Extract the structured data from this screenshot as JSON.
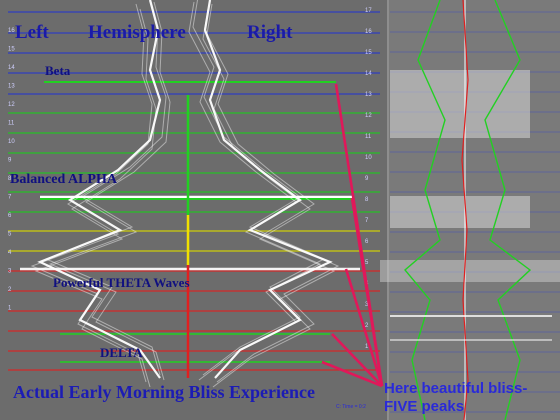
{
  "header": {
    "left": "Left",
    "center": "Hemisphere",
    "right": "Right"
  },
  "bands": {
    "beta": "Beta",
    "alpha": "Balanced ALPHA",
    "theta": "Powerful THETA Waves",
    "delta": "DELTA"
  },
  "caption": "Actual Early Morning Bliss Experience",
  "annotation": {
    "line1": "Here beautiful bliss-",
    "line2": "FIVE peaks"
  },
  "footnote": "C: Time = 0:2",
  "axis": {
    "left_numbers": [
      "16",
      "15",
      "14",
      "13",
      "12",
      "11",
      "10",
      "9",
      "8",
      "7",
      "6",
      "5",
      "4",
      "3",
      "2",
      "1"
    ],
    "right_numbers": [
      "17",
      "16",
      "15",
      "14",
      "13",
      "12",
      "11",
      "10",
      "9",
      "8",
      "7",
      "6",
      "5",
      "4",
      "3",
      "2",
      "1"
    ]
  },
  "colors": {
    "background": "#6e6e6e",
    "beta_lines": "#2a3ac8",
    "alpha_lines": "#1fc81f",
    "theta_lines": "#d8d800",
    "delta_lines": "#e02020",
    "text_blue": "#1a1aa8",
    "annotation_blue": "#2a2ad8",
    "arrow_red": "#e0185a"
  }
}
